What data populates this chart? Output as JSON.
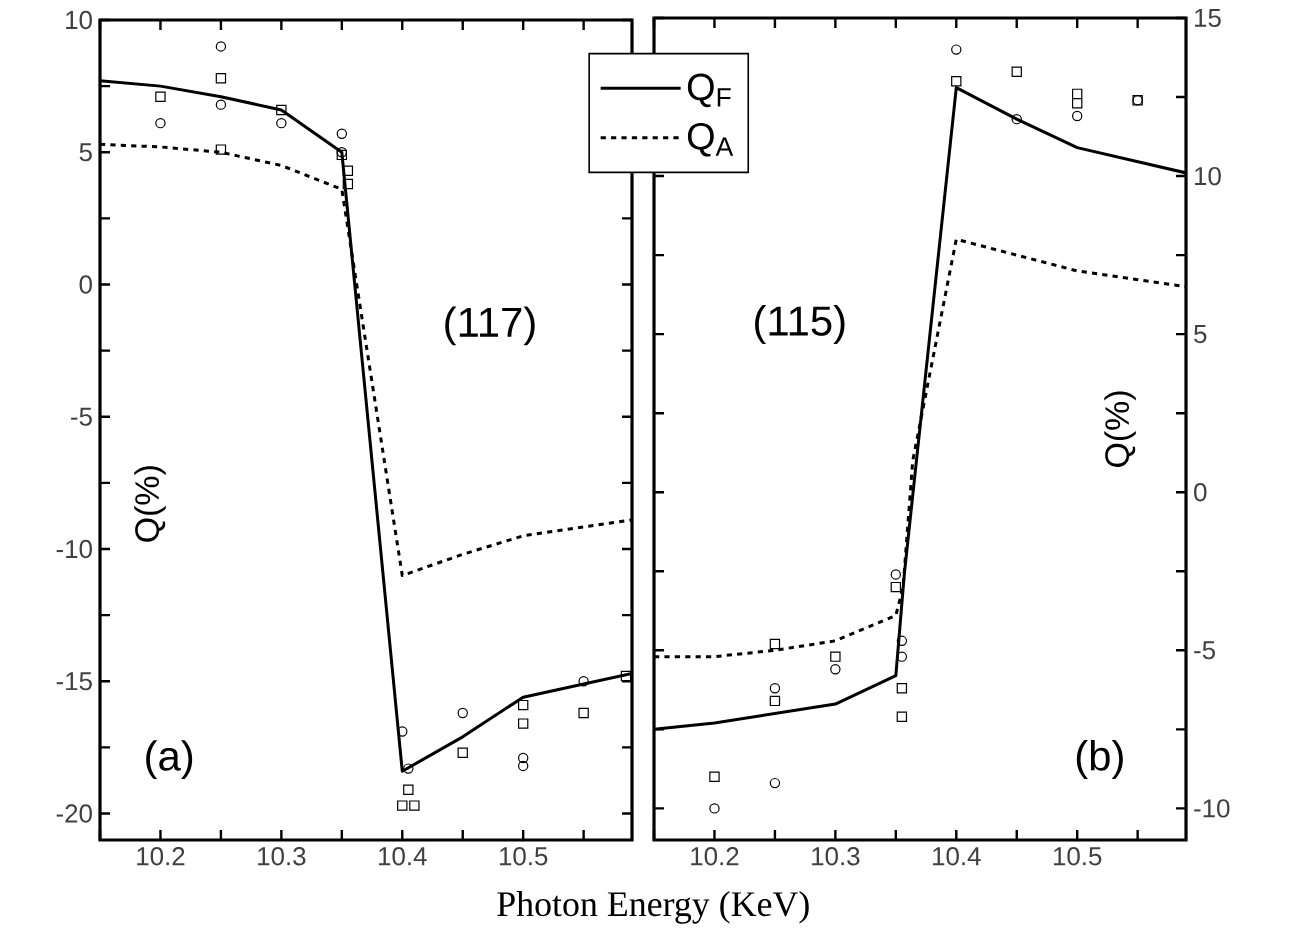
{
  "chart_data": [
    {
      "type": "line",
      "xlabel": "Photon Energy (KeV)",
      "ylabel": "Q(%)",
      "legend": "top right",
      "xlim": [
        10.15,
        10.59
      ],
      "ylim": [
        -21,
        10
      ],
      "xticks": [
        {
          "value": 10.15,
          "label": null
        },
        10.2,
        {
          "value": 10.25,
          "label": null
        },
        10.3,
        {
          "value": 10.35,
          "label": null
        },
        10.4,
        {
          "value": 10.45,
          "label": null
        },
        10.5,
        {
          "value": 10.55,
          "label": null
        }
      ],
      "yticks": [
        -20,
        {
          "value": -17.5,
          "label": null
        },
        -15,
        {
          "value": -12.5,
          "label": null
        },
        -10,
        {
          "value": -7.5,
          "label": null
        },
        -5,
        {
          "value": -2.5,
          "label": null
        },
        0,
        {
          "value": 2.5,
          "label": null
        },
        5,
        {
          "value": 7.5,
          "label": null
        },
        10
      ],
      "annotations": [
        "(117)",
        "(a)"
      ],
      "series": [
        {
          "name": "Q$_{F}$",
          "color": "#000000",
          "line_style": "solid",
          "marker": "none",
          "x": [
            10.15,
            10.2,
            10.25,
            10.3,
            10.35,
            10.4,
            10.45,
            10.5,
            10.55,
            10.59
          ],
          "values": [
            7.7,
            7.5,
            7.1,
            6.6,
            5.0,
            -18.4,
            -17.1,
            -15.6,
            -15.1,
            -14.7
          ]
        },
        {
          "name": "Q$_{A}$",
          "color": "#000000",
          "line_style": "dotted",
          "marker": "none",
          "x": [
            10.15,
            10.2,
            10.25,
            10.3,
            10.35,
            10.4,
            10.45,
            10.5,
            10.59
          ],
          "values": [
            5.3,
            5.2,
            5.0,
            4.5,
            3.6,
            -11.0,
            -10.2,
            -9.5,
            -8.9
          ]
        },
        {
          "type": "scatter",
          "color": "#000000",
          "marker": "circle",
          "x": [
            10.2,
            10.25,
            10.25,
            10.3,
            10.35,
            10.35,
            10.4,
            10.405,
            10.45,
            10.5,
            10.5,
            10.55
          ],
          "values": [
            6.1,
            9.0,
            6.8,
            6.1,
            5.7,
            5.0,
            -16.9,
            -18.3,
            -16.2,
            -17.9,
            -18.2,
            -15.0
          ]
        },
        {
          "type": "scatter",
          "color": "#000000",
          "marker": "square",
          "x": [
            10.2,
            10.25,
            10.25,
            10.3,
            10.35,
            10.355,
            10.355,
            10.405,
            10.4,
            10.41,
            10.45,
            10.5,
            10.5,
            10.55,
            10.585
          ],
          "values": [
            7.1,
            7.8,
            5.1,
            6.6,
            4.9,
            4.3,
            3.8,
            -19.1,
            -19.7,
            -19.7,
            -17.7,
            -15.9,
            -16.6,
            -16.2,
            -14.8
          ]
        }
      ]
    },
    {
      "type": "line",
      "ylabel": "Q(%)",
      "xlim": [
        10.15,
        10.59
      ],
      "ylim": [
        -11,
        15
      ],
      "xticks": [
        {
          "value": 10.15,
          "label": null
        },
        10.2,
        {
          "value": 10.25,
          "label": null
        },
        10.3,
        {
          "value": 10.35,
          "label": null
        },
        10.4,
        {
          "value": 10.45,
          "label": null
        },
        10.5,
        {
          "value": 10.55,
          "label": null
        }
      ],
      "yticks": [
        -10,
        {
          "value": -7.5,
          "label": null
        },
        -5,
        {
          "value": -2.5,
          "label": null
        },
        0,
        {
          "value": 2.5,
          "label": null
        },
        5,
        {
          "value": 7.5,
          "label": null
        },
        10,
        {
          "value": 12.5,
          "label": null
        },
        15
      ],
      "annotations": [
        "(115)",
        "(b)"
      ],
      "series": [
        {
          "color": "#000000",
          "line_style": "solid",
          "marker": "none",
          "x": [
            10.15,
            10.2,
            10.25,
            10.3,
            10.35,
            10.357,
            10.4,
            10.45,
            10.5,
            10.59
          ],
          "values": [
            -7.5,
            -7.3,
            -7.0,
            -6.7,
            -5.8,
            -2.6,
            12.8,
            11.8,
            10.9,
            10.1
          ]
        },
        {
          "color": "#000000",
          "line_style": "dotted",
          "marker": "none",
          "x": [
            10.15,
            10.2,
            10.25,
            10.3,
            10.35,
            10.356,
            10.364,
            10.4,
            10.45,
            10.5,
            10.59
          ],
          "values": [
            -5.2,
            -5.2,
            -5.0,
            -4.7,
            -3.9,
            -3.0,
            1.0,
            8.0,
            7.5,
            7.0,
            6.5
          ]
        },
        {
          "type": "scatter",
          "color": "#000000",
          "marker": "circle",
          "x": [
            10.2,
            10.25,
            10.25,
            10.3,
            10.35,
            10.355,
            10.355,
            10.4,
            10.45,
            10.5,
            10.55
          ],
          "values": [
            -10.0,
            -9.2,
            -6.2,
            -5.6,
            -2.6,
            -4.7,
            -5.2,
            14.0,
            11.8,
            11.9,
            12.4
          ]
        },
        {
          "type": "scatter",
          "color": "#000000",
          "marker": "square",
          "x": [
            10.2,
            10.25,
            10.25,
            10.3,
            10.35,
            10.355,
            10.355,
            10.4,
            10.45,
            10.5,
            10.5,
            10.55
          ],
          "values": [
            -9.0,
            -4.8,
            -6.6,
            -5.2,
            -3.0,
            -6.2,
            -7.1,
            13.0,
            13.3,
            12.6,
            12.3,
            12.4
          ]
        }
      ]
    }
  ]
}
